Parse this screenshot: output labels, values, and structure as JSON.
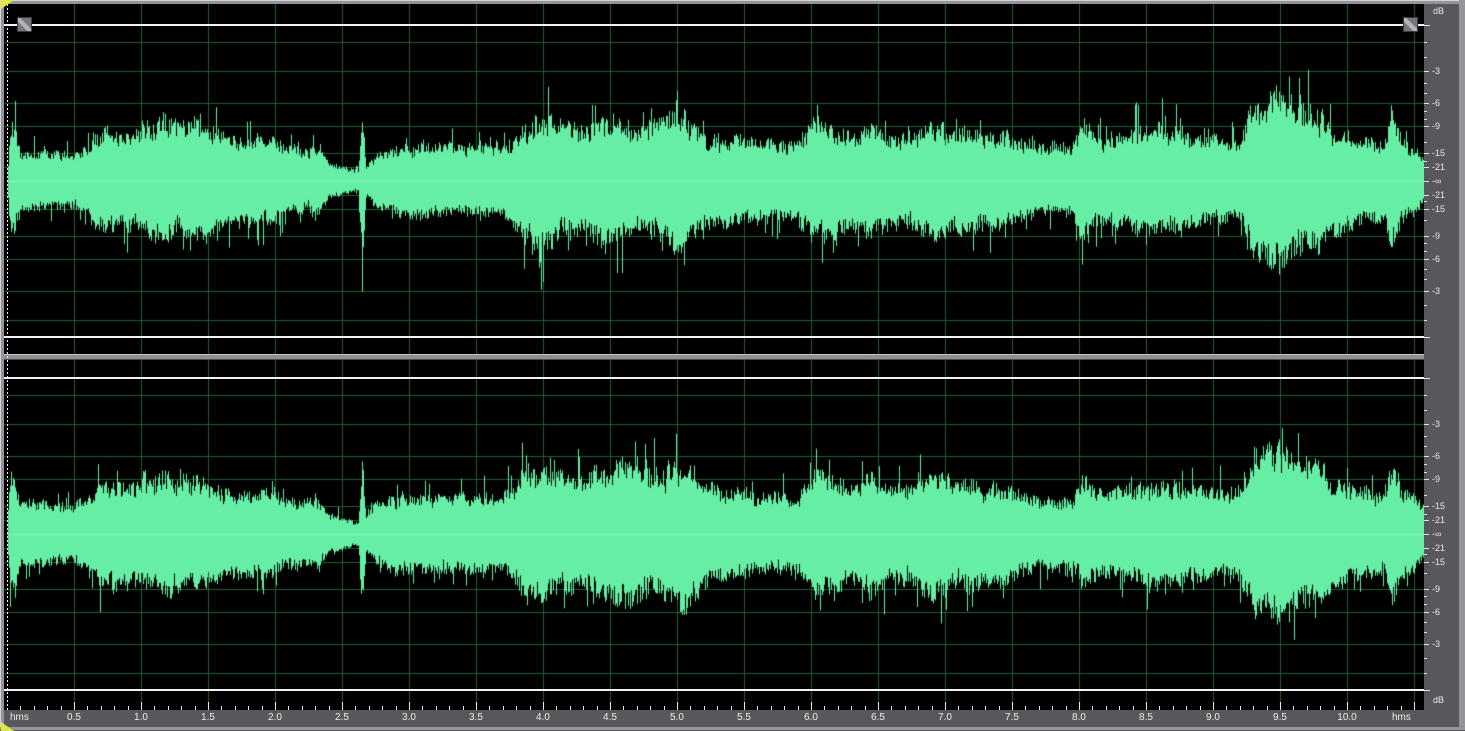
{
  "colors": {
    "background": "#000000",
    "waveform": "#66efa4",
    "waveform_center": "#8df3bd",
    "grid": "#245c33",
    "zero_line": "#f2f2f2",
    "ruler_bg": "#58585c",
    "ruler_text": "#e8e8e8",
    "frame": "#94949a",
    "splitter": "#8f8f93",
    "cursor": "#f0f0f0",
    "cursor_marker": "#e4e442",
    "handle": "#77777b"
  },
  "icons": {
    "cursor_marker": "yellow-triangle",
    "level_drag_handle": "diagonal-striped-square"
  },
  "db_ruler": {
    "unit_label": "dB",
    "center_label": "-∞",
    "labeled_db": [
      -3,
      -6,
      -9,
      -15,
      -21
    ],
    "minor_db": [
      -1,
      -2,
      -4,
      -5,
      -7,
      -8,
      -12,
      -18
    ],
    "grid_db": [
      -1,
      -3,
      -6,
      -9,
      -15,
      -21
    ]
  },
  "time_ruler": {
    "unit_label": "hms",
    "major_step": 0.5,
    "minor_step": 0.1,
    "major_labels": [
      "0.5",
      "1.0",
      "1.5",
      "2.0",
      "2.5",
      "3.0",
      "3.5",
      "4.0",
      "4.5",
      "5.0",
      "5.5",
      "6.0",
      "6.5",
      "7.0",
      "7.5",
      "8.0",
      "8.5",
      "9.0",
      "9.5",
      "10.0"
    ]
  },
  "cursor": {
    "time": 0
  },
  "channels": [
    {
      "envelope": [
        [
          0,
          0
        ],
        [
          0.02,
          0.38
        ],
        [
          0.04,
          0.42
        ],
        [
          0.07,
          0.33
        ],
        [
          0.1,
          0.22
        ],
        [
          0.3,
          0.21
        ],
        [
          0.5,
          0.2
        ],
        [
          0.6,
          0.24
        ],
        [
          0.68,
          0.36
        ],
        [
          0.8,
          0.36
        ],
        [
          0.95,
          0.34
        ],
        [
          1.05,
          0.4
        ],
        [
          1.2,
          0.44
        ],
        [
          1.3,
          0.4
        ],
        [
          1.45,
          0.42
        ],
        [
          1.55,
          0.38
        ],
        [
          1.65,
          0.3
        ],
        [
          1.8,
          0.31
        ],
        [
          2,
          0.3
        ],
        [
          2.1,
          0.24
        ],
        [
          2.25,
          0.22
        ],
        [
          2.3,
          0.28
        ],
        [
          2.4,
          0.13
        ],
        [
          2.55,
          0.09
        ],
        [
          2.62,
          0.07
        ],
        [
          2.65,
          0.55
        ],
        [
          2.68,
          0.1
        ],
        [
          2.75,
          0.2
        ],
        [
          2.9,
          0.25
        ],
        [
          3.1,
          0.26
        ],
        [
          3.3,
          0.25
        ],
        [
          3.5,
          0.26
        ],
        [
          3.7,
          0.24
        ],
        [
          3.85,
          0.4
        ],
        [
          4,
          0.5
        ],
        [
          4.15,
          0.38
        ],
        [
          4.3,
          0.38
        ],
        [
          4.5,
          0.46
        ],
        [
          4.7,
          0.36
        ],
        [
          4.9,
          0.45
        ],
        [
          5,
          0.52
        ],
        [
          5.1,
          0.42
        ],
        [
          5.25,
          0.3
        ],
        [
          5.45,
          0.31
        ],
        [
          5.65,
          0.28
        ],
        [
          5.9,
          0.27
        ],
        [
          6.02,
          0.44
        ],
        [
          6.15,
          0.4
        ],
        [
          6.3,
          0.34
        ],
        [
          6.45,
          0.4
        ],
        [
          6.6,
          0.31
        ],
        [
          6.75,
          0.33
        ],
        [
          6.9,
          0.42
        ],
        [
          7.05,
          0.36
        ],
        [
          7.15,
          0.4
        ],
        [
          7.3,
          0.33
        ],
        [
          7.45,
          0.35
        ],
        [
          7.6,
          0.26
        ],
        [
          7.8,
          0.24
        ],
        [
          7.95,
          0.25
        ],
        [
          8.02,
          0.42
        ],
        [
          8.15,
          0.3
        ],
        [
          8.35,
          0.34
        ],
        [
          8.55,
          0.38
        ],
        [
          8.75,
          0.36
        ],
        [
          8.95,
          0.32
        ],
        [
          9.1,
          0.28
        ],
        [
          9.2,
          0.3
        ],
        [
          9.3,
          0.55
        ],
        [
          9.4,
          0.58
        ],
        [
          9.5,
          0.64
        ],
        [
          9.6,
          0.52
        ],
        [
          9.7,
          0.5
        ],
        [
          9.78,
          0.53
        ],
        [
          9.88,
          0.38
        ],
        [
          10,
          0.33
        ],
        [
          10.15,
          0.29
        ],
        [
          10.28,
          0.28
        ],
        [
          10.33,
          0.5
        ],
        [
          10.4,
          0.3
        ],
        [
          10.5,
          0.26
        ],
        [
          10.57,
          0.16
        ],
        [
          10.63,
          0.15
        ]
      ]
    },
    {
      "envelope": [
        [
          0,
          0
        ],
        [
          0.02,
          0.42
        ],
        [
          0.04,
          0.45
        ],
        [
          0.07,
          0.35
        ],
        [
          0.1,
          0.23
        ],
        [
          0.3,
          0.22
        ],
        [
          0.5,
          0.21
        ],
        [
          0.6,
          0.25
        ],
        [
          0.68,
          0.35
        ],
        [
          0.8,
          0.37
        ],
        [
          0.95,
          0.35
        ],
        [
          1.05,
          0.38
        ],
        [
          1.2,
          0.45
        ],
        [
          1.3,
          0.38
        ],
        [
          1.45,
          0.4
        ],
        [
          1.55,
          0.36
        ],
        [
          1.65,
          0.31
        ],
        [
          1.8,
          0.32
        ],
        [
          2,
          0.3
        ],
        [
          2.1,
          0.25
        ],
        [
          2.25,
          0.23
        ],
        [
          2.3,
          0.27
        ],
        [
          2.4,
          0.14
        ],
        [
          2.55,
          0.1
        ],
        [
          2.62,
          0.08
        ],
        [
          2.65,
          0.5
        ],
        [
          2.68,
          0.12
        ],
        [
          2.75,
          0.22
        ],
        [
          2.9,
          0.27
        ],
        [
          3.1,
          0.28
        ],
        [
          3.3,
          0.27
        ],
        [
          3.5,
          0.28
        ],
        [
          3.7,
          0.26
        ],
        [
          3.85,
          0.44
        ],
        [
          4,
          0.5
        ],
        [
          4.15,
          0.4
        ],
        [
          4.3,
          0.42
        ],
        [
          4.5,
          0.48
        ],
        [
          4.65,
          0.52
        ],
        [
          4.8,
          0.42
        ],
        [
          4.95,
          0.5
        ],
        [
          5.05,
          0.52
        ],
        [
          5.15,
          0.42
        ],
        [
          5.3,
          0.32
        ],
        [
          5.5,
          0.3
        ],
        [
          5.7,
          0.29
        ],
        [
          5.9,
          0.28
        ],
        [
          6.02,
          0.45
        ],
        [
          6.15,
          0.42
        ],
        [
          6.3,
          0.36
        ],
        [
          6.45,
          0.42
        ],
        [
          6.6,
          0.33
        ],
        [
          6.75,
          0.35
        ],
        [
          6.9,
          0.44
        ],
        [
          7.05,
          0.38
        ],
        [
          7.15,
          0.42
        ],
        [
          7.3,
          0.35
        ],
        [
          7.45,
          0.36
        ],
        [
          7.6,
          0.28
        ],
        [
          7.8,
          0.25
        ],
        [
          7.95,
          0.26
        ],
        [
          8.02,
          0.4
        ],
        [
          8.15,
          0.31
        ],
        [
          8.35,
          0.33
        ],
        [
          8.55,
          0.36
        ],
        [
          8.75,
          0.35
        ],
        [
          8.95,
          0.33
        ],
        [
          9.1,
          0.3
        ],
        [
          9.2,
          0.32
        ],
        [
          9.3,
          0.56
        ],
        [
          9.4,
          0.6
        ],
        [
          9.5,
          0.62
        ],
        [
          9.6,
          0.55
        ],
        [
          9.7,
          0.52
        ],
        [
          9.78,
          0.55
        ],
        [
          9.88,
          0.4
        ],
        [
          10,
          0.35
        ],
        [
          10.15,
          0.3
        ],
        [
          10.28,
          0.29
        ],
        [
          10.33,
          0.52
        ],
        [
          10.4,
          0.32
        ],
        [
          10.5,
          0.28
        ],
        [
          10.57,
          0.18
        ],
        [
          10.63,
          0.17
        ]
      ]
    }
  ]
}
